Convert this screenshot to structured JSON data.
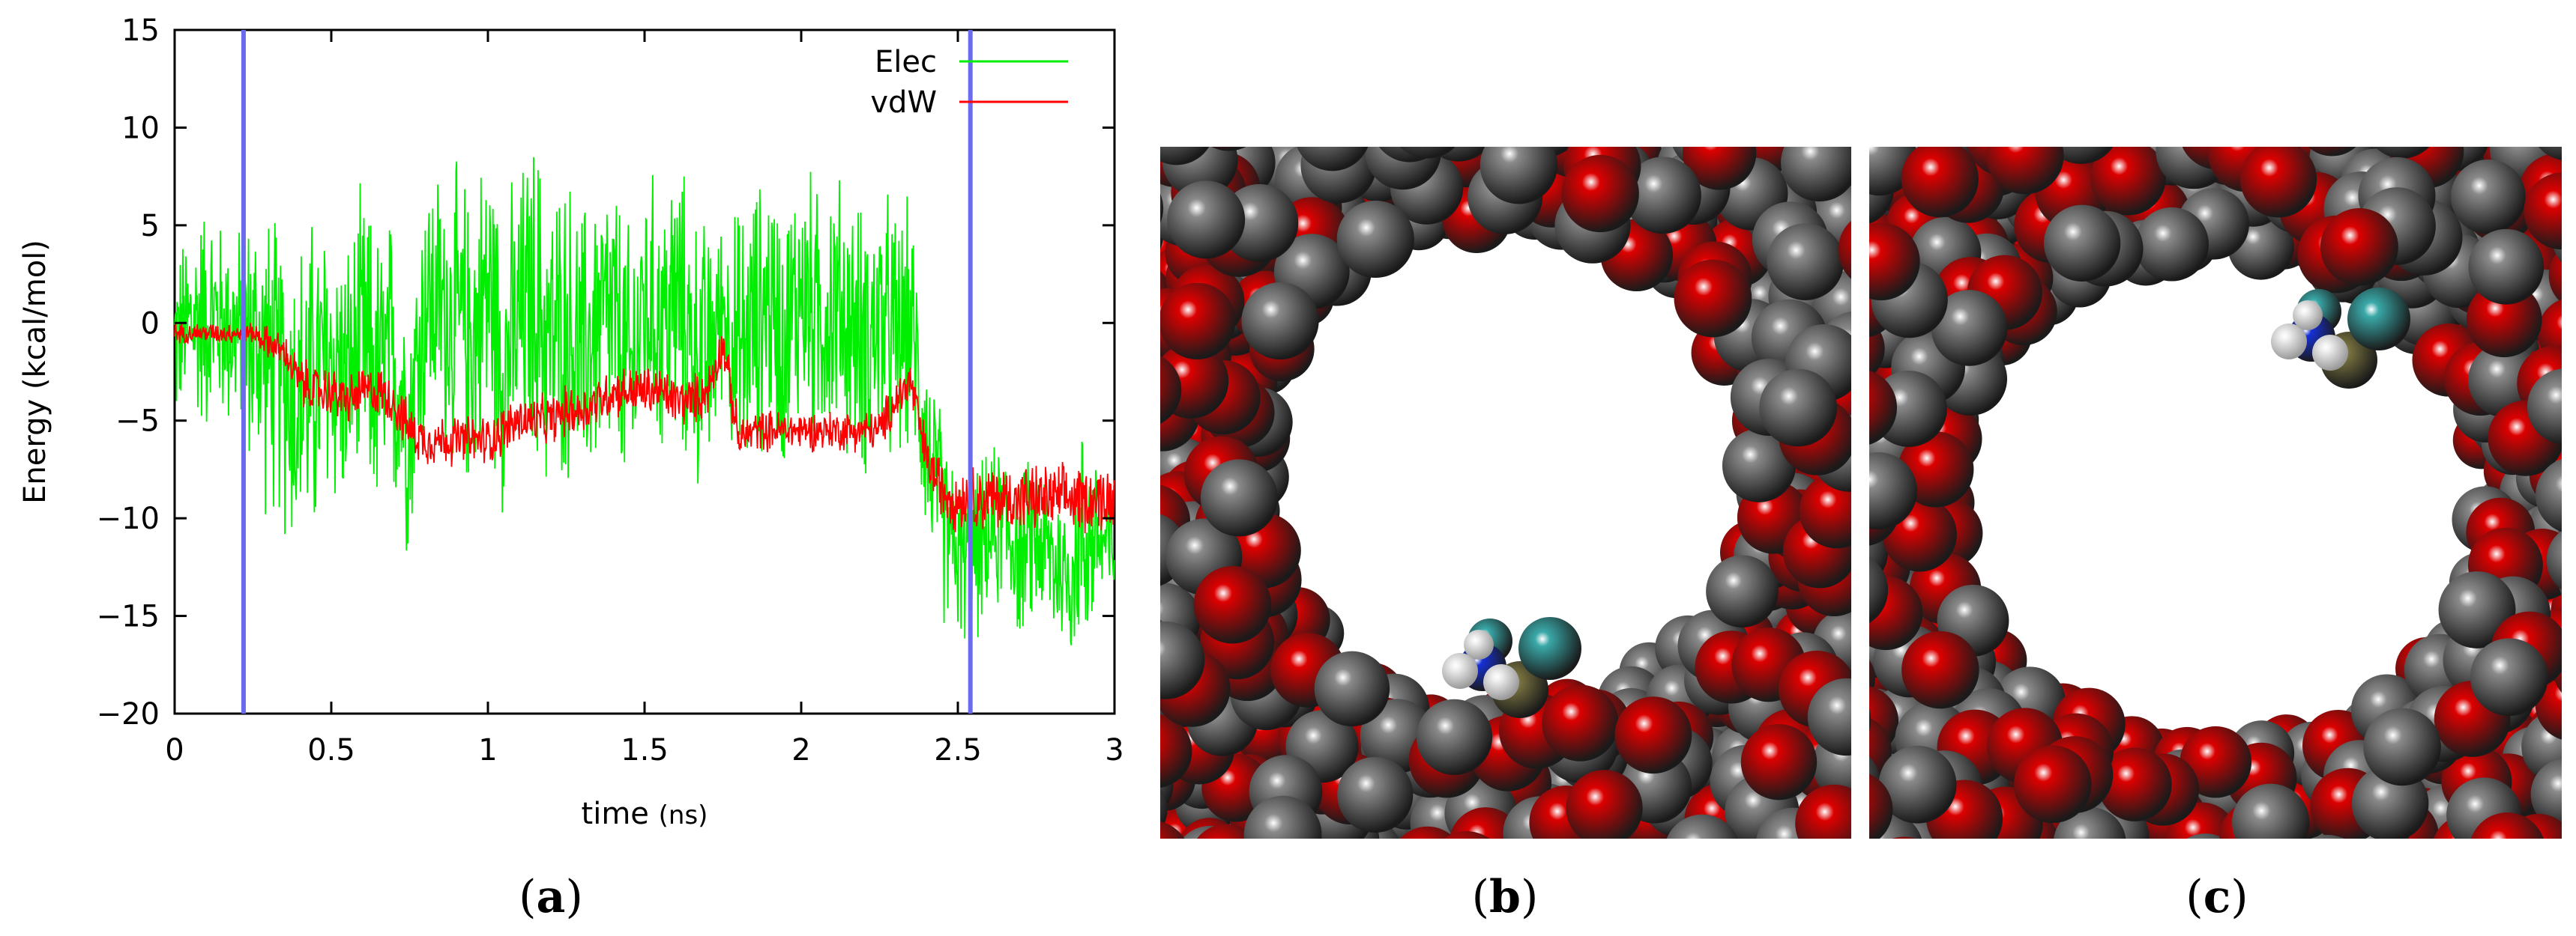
{
  "chart_data": {
    "type": "line",
    "xlabel": "time",
    "xlabel_unit": "(ns)",
    "ylabel": "Energy (kcal/mol)",
    "xlim": [
      0,
      3
    ],
    "ylim": [
      -20,
      15
    ],
    "x_ticks": [
      "0",
      "0.5",
      "1",
      "1.5",
      "2",
      "2.5",
      "3"
    ],
    "y_ticks": [
      "15",
      "10",
      "5",
      "0",
      "-5",
      "-10",
      "-15",
      "-20"
    ],
    "grid": false,
    "legend_position": "top-right",
    "vertical_markers": [
      0.22,
      2.54
    ],
    "series": [
      {
        "name": "Elec",
        "color": "#00ee00",
        "x": [
          0,
          0.05,
          0.1,
          0.15,
          0.2,
          0.25,
          0.3,
          0.35,
          0.4,
          0.45,
          0.5,
          0.55,
          0.6,
          0.65,
          0.7,
          0.75,
          0.8,
          0.85,
          0.9,
          0.95,
          1.0,
          1.05,
          1.1,
          1.15,
          1.2,
          1.25,
          1.3,
          1.35,
          1.4,
          1.45,
          1.5,
          1.55,
          1.6,
          1.65,
          1.7,
          1.75,
          1.8,
          1.85,
          1.9,
          1.95,
          2.0,
          2.05,
          2.1,
          2.15,
          2.2,
          2.25,
          2.3,
          2.35,
          2.4,
          2.45,
          2.5,
          2.55,
          2.6,
          2.65,
          2.7,
          2.75,
          2.8,
          2.85,
          2.9,
          2.95,
          3.0
        ],
        "values": [
          -1,
          0,
          0.5,
          0,
          -0.5,
          -1,
          -2,
          -3,
          -4,
          -3,
          -2,
          -3,
          -1,
          -3,
          -2,
          -5,
          1,
          1,
          0,
          -1,
          2,
          -2,
          0,
          1,
          -1,
          0,
          -2,
          0,
          0,
          -3,
          1,
          0,
          1,
          -1,
          -2,
          1,
          -2,
          0,
          1,
          -1,
          2,
          0,
          1,
          0,
          -1,
          0,
          -1,
          0,
          -6,
          -10,
          -12,
          -12,
          -11,
          -10,
          -12,
          -11,
          -12,
          -13,
          -11,
          -11,
          -12
        ],
        "spread": [
          5,
          6,
          7,
          6,
          6,
          8,
          9,
          9,
          10,
          10,
          9,
          8,
          9,
          9,
          9,
          8,
          8,
          8,
          9,
          9,
          9,
          9,
          9,
          10,
          9,
          9,
          9,
          9,
          9,
          9,
          8,
          8,
          9,
          8,
          8,
          5,
          9,
          8,
          8,
          8,
          8,
          8,
          8,
          8,
          8,
          8,
          8,
          7,
          6,
          6,
          5,
          5,
          5,
          5,
          5,
          5,
          5,
          5,
          7,
          5,
          4
        ]
      },
      {
        "name": "vdW",
        "color": "#ff0000",
        "x": [
          0,
          0.05,
          0.1,
          0.15,
          0.2,
          0.25,
          0.3,
          0.35,
          0.4,
          0.45,
          0.5,
          0.55,
          0.6,
          0.65,
          0.7,
          0.75,
          0.8,
          0.85,
          0.9,
          0.95,
          1.0,
          1.05,
          1.1,
          1.15,
          1.2,
          1.25,
          1.3,
          1.35,
          1.4,
          1.45,
          1.5,
          1.55,
          1.6,
          1.65,
          1.7,
          1.75,
          1.8,
          1.85,
          1.9,
          1.95,
          2.0,
          2.05,
          2.1,
          2.15,
          2.2,
          2.25,
          2.3,
          2.35,
          2.4,
          2.45,
          2.5,
          2.55,
          2.6,
          2.65,
          2.7,
          2.75,
          2.8,
          2.85,
          2.9,
          2.95,
          3.0
        ],
        "values": [
          -0.5,
          -0.5,
          -0.5,
          -0.5,
          -0.5,
          -0.5,
          -1,
          -1.5,
          -3,
          -3.5,
          -3.5,
          -4,
          -3.5,
          -3.5,
          -4,
          -5.5,
          -6,
          -6,
          -6,
          -6,
          -6,
          -5.5,
          -5,
          -5,
          -5,
          -4.5,
          -4.5,
          -4,
          -3.5,
          -3.5,
          -3.5,
          -3.5,
          -4,
          -4,
          -3.5,
          -1,
          -6,
          -5.5,
          -5.5,
          -5.5,
          -5.5,
          -5.5,
          -5.5,
          -5.5,
          -5.5,
          -5.5,
          -4,
          -3,
          -7,
          -8.5,
          -9,
          -9,
          -9,
          -9,
          -9,
          -9,
          -9,
          -9,
          -9,
          -9,
          -9
        ],
        "spread": [
          0.6,
          0.6,
          0.6,
          0.6,
          0.6,
          0.6,
          1,
          1,
          1.5,
          1.5,
          1.5,
          1.5,
          1.5,
          1.5,
          1.5,
          1.5,
          1.5,
          1.5,
          1.5,
          1.5,
          1.5,
          1.5,
          1.5,
          1.5,
          1.5,
          1.5,
          1.5,
          1.5,
          1.5,
          1.5,
          1.5,
          1.5,
          1.5,
          1.5,
          1.5,
          1.2,
          1.5,
          1.2,
          1.2,
          1.2,
          1.2,
          1.2,
          1.2,
          1.2,
          1.2,
          1.2,
          1.5,
          1.5,
          1.5,
          1.8,
          2,
          2,
          2,
          2,
          2,
          2,
          2,
          2,
          2,
          2,
          2
        ]
      }
    ]
  },
  "panels": {
    "a": "a",
    "b": "b",
    "c": "c"
  },
  "colors": {
    "marker_line": "#6b6bee",
    "oxygen": "#dd0000",
    "carbon": "#8a8a8a",
    "nitrogen": "#1530d8",
    "hydrogen": "#f0f0f0",
    "fluorine": "#3aa8a8",
    "sulfur": "#7a7440"
  }
}
